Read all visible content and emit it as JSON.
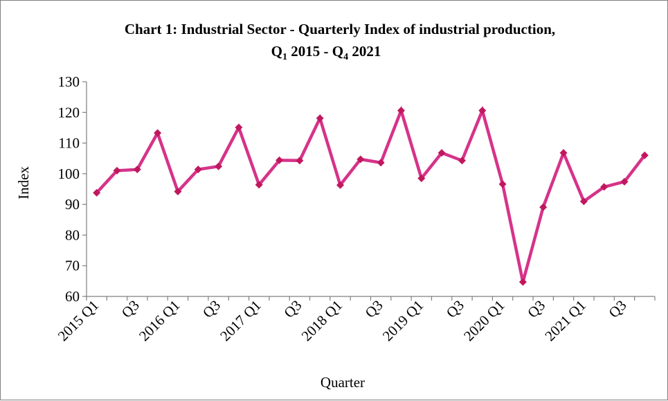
{
  "chart_data": {
    "type": "line",
    "title_line1": "Chart 1: Industrial Sector - Quarterly Index of industrial production,",
    "title_line2_parts": [
      "Q",
      "1",
      " 2015  - Q",
      "4",
      " 2021"
    ],
    "xlabel": "Quarter",
    "ylabel": "Index",
    "ylim": [
      60,
      130
    ],
    "yticks": [
      60,
      70,
      80,
      90,
      100,
      110,
      120,
      130
    ],
    "grid": false,
    "legend": "none",
    "colors": {
      "line": "#d6338a",
      "marker": "#c0185f"
    },
    "categories": [
      "2015 Q1",
      "Q2",
      "Q3",
      "Q4",
      "2016 Q1",
      "Q2",
      "Q3",
      "Q4",
      "2017 Q1",
      "Q2",
      "Q3",
      "Q4",
      "2018 Q1",
      "Q2",
      "Q3",
      "Q4",
      "2019 Q1",
      "Q2",
      "Q3",
      "Q4",
      "2020 Q1",
      "Q2",
      "Q3",
      "Q4",
      "2021 Q1",
      "Q2",
      "Q3",
      "Q4"
    ],
    "shown_tick_labels": [
      "2015 Q1",
      "Q3",
      "2016 Q1",
      "Q3",
      "2017 Q1",
      "Q3",
      "2018 Q1",
      "Q3",
      "2019 Q1",
      "Q3",
      "2020 Q1",
      "Q3",
      "2021 Q1",
      "Q3"
    ],
    "values": [
      93.8,
      101.0,
      101.4,
      113.3,
      94.2,
      101.4,
      102.4,
      115.1,
      96.4,
      104.4,
      104.3,
      118.1,
      96.3,
      104.7,
      103.6,
      120.6,
      98.5,
      106.8,
      104.3,
      120.6,
      96.6,
      64.7,
      89.1,
      106.8,
      91.0,
      95.7,
      97.4,
      106.0
    ]
  }
}
